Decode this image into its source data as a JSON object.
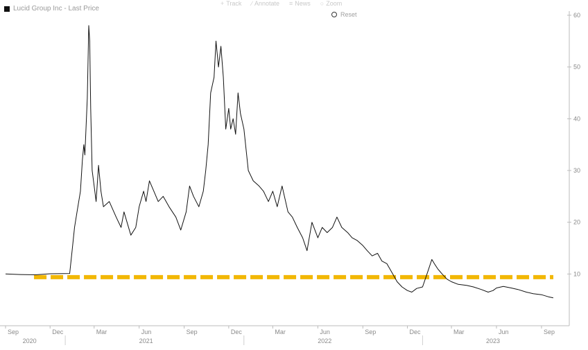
{
  "legend": {
    "label": "Lucid Group Inc - Last Price"
  },
  "toolbar": [
    {
      "label": "Track",
      "icon": "crosshair-icon",
      "glyph": "+"
    },
    {
      "label": "Annotate",
      "icon": "pencil-icon",
      "glyph": "∕"
    },
    {
      "label": "News",
      "icon": "news-icon",
      "glyph": "≡"
    },
    {
      "label": "Zoom",
      "icon": "zoom-icon",
      "glyph": "○"
    }
  ],
  "reset": {
    "label": "Reset"
  },
  "chart_data": {
    "type": "line",
    "ylim": [
      0,
      60
    ],
    "y_ticks": [
      10,
      20,
      30,
      40,
      50,
      60
    ],
    "x_ticks": [
      {
        "label": "Sep",
        "date": "2020-09-01"
      },
      {
        "label": "Dec",
        "date": "2020-12-01"
      },
      {
        "label": "Mar",
        "date": "2021-03-01"
      },
      {
        "label": "Jun",
        "date": "2021-06-01"
      },
      {
        "label": "Sep",
        "date": "2021-09-01"
      },
      {
        "label": "Dec",
        "date": "2021-12-01"
      },
      {
        "label": "Mar",
        "date": "2022-03-01"
      },
      {
        "label": "Jun",
        "date": "2022-06-01"
      },
      {
        "label": "Sep",
        "date": "2022-09-01"
      },
      {
        "label": "Dec",
        "date": "2022-12-01"
      },
      {
        "label": "Mar",
        "date": "2023-03-01"
      },
      {
        "label": "Jun",
        "date": "2023-06-01"
      },
      {
        "label": "Sep",
        "date": "2023-09-01"
      }
    ],
    "year_labels": [
      {
        "label": "2020",
        "date": "2020-10-20"
      },
      {
        "label": "2021",
        "date": "2021-06-15"
      },
      {
        "label": "2022",
        "date": "2022-06-15"
      },
      {
        "label": "2023",
        "date": "2023-05-25"
      }
    ],
    "x_range": [
      "2020-09-01",
      "2023-09-28"
    ],
    "grid": false,
    "y_axis_position": "right",
    "series": [
      {
        "color": "#111111",
        "points": [
          [
            "2020-09-01",
            10.0
          ],
          [
            "2020-10-01",
            9.9
          ],
          [
            "2020-11-01",
            9.85
          ],
          [
            "2020-12-01",
            10.05
          ],
          [
            "2021-01-10",
            10.1
          ],
          [
            "2021-01-15",
            14.5
          ],
          [
            "2021-01-20",
            19
          ],
          [
            "2021-01-25",
            22
          ],
          [
            "2021-02-01",
            26
          ],
          [
            "2021-02-05",
            32
          ],
          [
            "2021-02-08",
            35
          ],
          [
            "2021-02-10",
            33
          ],
          [
            "2021-02-15",
            44
          ],
          [
            "2021-02-18",
            58
          ],
          [
            "2021-02-20",
            55
          ],
          [
            "2021-02-22",
            42
          ],
          [
            "2021-02-25",
            30
          ],
          [
            "2021-03-01",
            27
          ],
          [
            "2021-03-05",
            24
          ],
          [
            "2021-03-10",
            31
          ],
          [
            "2021-03-15",
            26
          ],
          [
            "2021-03-20",
            23
          ],
          [
            "2021-04-01",
            24
          ],
          [
            "2021-04-15",
            21
          ],
          [
            "2021-04-25",
            19
          ],
          [
            "2021-05-01",
            22
          ],
          [
            "2021-05-15",
            17.5
          ],
          [
            "2021-05-25",
            19
          ],
          [
            "2021-06-01",
            23
          ],
          [
            "2021-06-10",
            26
          ],
          [
            "2021-06-15",
            24
          ],
          [
            "2021-06-22",
            28
          ],
          [
            "2021-07-01",
            26
          ],
          [
            "2021-07-10",
            24
          ],
          [
            "2021-07-20",
            25
          ],
          [
            "2021-08-01",
            23
          ],
          [
            "2021-08-15",
            21
          ],
          [
            "2021-08-25",
            18.5
          ],
          [
            "2021-09-05",
            22
          ],
          [
            "2021-09-12",
            27
          ],
          [
            "2021-09-20",
            25
          ],
          [
            "2021-10-01",
            23
          ],
          [
            "2021-10-10",
            26
          ],
          [
            "2021-10-15",
            30
          ],
          [
            "2021-10-20",
            35
          ],
          [
            "2021-10-25",
            45
          ],
          [
            "2021-11-01",
            48
          ],
          [
            "2021-11-05",
            55
          ],
          [
            "2021-11-10",
            50
          ],
          [
            "2021-11-15",
            54
          ],
          [
            "2021-11-20",
            48
          ],
          [
            "2021-11-25",
            38
          ],
          [
            "2021-12-01",
            42
          ],
          [
            "2021-12-05",
            38
          ],
          [
            "2021-12-10",
            40
          ],
          [
            "2021-12-15",
            37
          ],
          [
            "2021-12-20",
            45
          ],
          [
            "2021-12-25",
            41
          ],
          [
            "2022-01-01",
            38
          ],
          [
            "2022-01-10",
            30
          ],
          [
            "2022-01-20",
            28
          ],
          [
            "2022-02-01",
            27
          ],
          [
            "2022-02-10",
            26
          ],
          [
            "2022-02-20",
            24
          ],
          [
            "2022-03-01",
            26
          ],
          [
            "2022-03-10",
            23
          ],
          [
            "2022-03-20",
            27
          ],
          [
            "2022-04-01",
            22
          ],
          [
            "2022-04-10",
            21
          ],
          [
            "2022-04-20",
            19
          ],
          [
            "2022-05-01",
            17
          ],
          [
            "2022-05-10",
            14.5
          ],
          [
            "2022-05-20",
            20
          ],
          [
            "2022-06-01",
            17
          ],
          [
            "2022-06-10",
            19
          ],
          [
            "2022-06-20",
            18
          ],
          [
            "2022-07-01",
            19
          ],
          [
            "2022-07-10",
            21
          ],
          [
            "2022-07-20",
            19
          ],
          [
            "2022-08-01",
            18
          ],
          [
            "2022-08-10",
            17
          ],
          [
            "2022-08-20",
            16.5
          ],
          [
            "2022-09-01",
            15.5
          ],
          [
            "2022-09-10",
            14.5
          ],
          [
            "2022-09-20",
            13.5
          ],
          [
            "2022-10-01",
            14
          ],
          [
            "2022-10-10",
            12.5
          ],
          [
            "2022-10-20",
            12
          ],
          [
            "2022-11-01",
            10
          ],
          [
            "2022-11-10",
            8.5
          ],
          [
            "2022-11-20",
            7.5
          ],
          [
            "2022-12-01",
            6.8
          ],
          [
            "2022-12-10",
            6.5
          ],
          [
            "2022-12-20",
            7.2
          ],
          [
            "2023-01-01",
            7.5
          ],
          [
            "2023-01-10",
            10
          ],
          [
            "2023-01-20",
            12.8
          ],
          [
            "2023-01-25",
            12
          ],
          [
            "2023-02-01",
            11
          ],
          [
            "2023-02-10",
            10
          ],
          [
            "2023-02-20",
            9
          ],
          [
            "2023-03-01",
            8.5
          ],
          [
            "2023-03-15",
            8.0
          ],
          [
            "2023-04-01",
            7.8
          ],
          [
            "2023-04-15",
            7.5
          ],
          [
            "2023-05-01",
            7.0
          ],
          [
            "2023-05-15",
            6.5
          ],
          [
            "2023-05-25",
            6.8
          ],
          [
            "2023-06-01",
            7.3
          ],
          [
            "2023-06-15",
            7.6
          ],
          [
            "2023-07-01",
            7.3
          ],
          [
            "2023-07-15",
            7.0
          ],
          [
            "2023-08-01",
            6.5
          ],
          [
            "2023-08-15",
            6.2
          ],
          [
            "2023-09-01",
            6.0
          ],
          [
            "2023-09-15",
            5.6
          ],
          [
            "2023-09-25",
            5.4
          ]
        ]
      }
    ],
    "reference_line": {
      "value": 9.4,
      "color": "#f2b705",
      "style": "dashed"
    }
  }
}
